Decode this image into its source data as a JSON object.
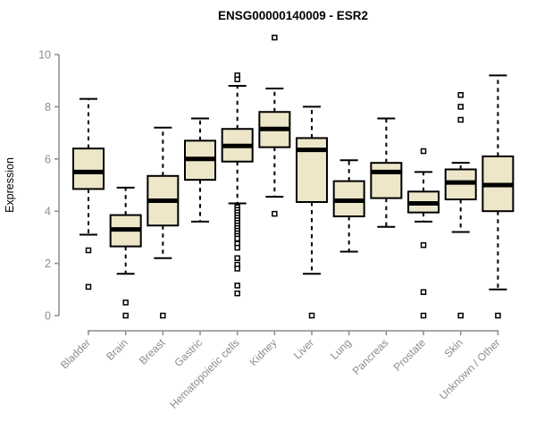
{
  "chart_data": {
    "type": "boxplot",
    "title": "ENSG00000140009 - ESR2",
    "xlabel": "",
    "ylabel": "Expression",
    "ylim": [
      0,
      10
    ],
    "yticks": [
      0,
      2,
      4,
      6,
      8,
      10
    ],
    "grid": false,
    "legend": "none",
    "categories": [
      "Bladder",
      "Brain",
      "Breast",
      "Gastric",
      "Hematopoietic cells",
      "Kidney",
      "Liver",
      "Lung",
      "Pancreas",
      "Prostate",
      "Skin",
      "Unknown / Other"
    ],
    "series": [
      {
        "name": "Bladder",
        "whisker_low": 3.1,
        "q1": 4.85,
        "median": 5.5,
        "q3": 6.4,
        "whisker_high": 8.3,
        "outliers": [
          2.5,
          1.1
        ]
      },
      {
        "name": "Brain",
        "whisker_low": 1.6,
        "q1": 2.65,
        "median": 3.3,
        "q3": 3.85,
        "whisker_high": 4.9,
        "outliers": [
          0.5,
          0
        ]
      },
      {
        "name": "Breast",
        "whisker_low": 2.2,
        "q1": 3.45,
        "median": 4.4,
        "q3": 5.35,
        "whisker_high": 7.2,
        "outliers": [
          0
        ]
      },
      {
        "name": "Gastric",
        "whisker_low": 3.6,
        "q1": 5.2,
        "median": 6.0,
        "q3": 6.7,
        "whisker_high": 7.55,
        "outliers": []
      },
      {
        "name": "Hematopoietic cells",
        "whisker_low": 4.3,
        "q1": 5.9,
        "median": 6.5,
        "q3": 7.15,
        "whisker_high": 8.8,
        "outliers": [
          9.2,
          9.05,
          4.15,
          4.05,
          3.95,
          3.85,
          3.75,
          3.65,
          3.55,
          3.45,
          3.35,
          3.25,
          3.15,
          3.05,
          2.95,
          2.75,
          2.6,
          2.2,
          1.95,
          1.8,
          1.15,
          0.85
        ]
      },
      {
        "name": "Kidney",
        "whisker_low": 4.55,
        "q1": 6.45,
        "median": 7.15,
        "q3": 7.8,
        "whisker_high": 8.7,
        "outliers": [
          10.65,
          3.9
        ]
      },
      {
        "name": "Liver",
        "whisker_low": 1.6,
        "q1": 4.35,
        "median": 6.35,
        "q3": 6.8,
        "whisker_high": 8.0,
        "outliers": [
          0
        ]
      },
      {
        "name": "Lung",
        "whisker_low": 2.45,
        "q1": 3.8,
        "median": 4.4,
        "q3": 5.15,
        "whisker_high": 5.95,
        "outliers": []
      },
      {
        "name": "Pancreas",
        "whisker_low": 3.4,
        "q1": 4.5,
        "median": 5.5,
        "q3": 5.85,
        "whisker_high": 7.55,
        "outliers": []
      },
      {
        "name": "Prostate",
        "whisker_low": 3.6,
        "q1": 3.95,
        "median": 4.3,
        "q3": 4.75,
        "whisker_high": 5.5,
        "outliers": [
          6.3,
          2.7,
          0.9,
          0
        ]
      },
      {
        "name": "Skin",
        "whisker_low": 3.2,
        "q1": 4.45,
        "median": 5.1,
        "q3": 5.6,
        "whisker_high": 5.85,
        "outliers": [
          8.45,
          8.0,
          7.5,
          0
        ]
      },
      {
        "name": "Unknown / Other",
        "whisker_low": 1.0,
        "q1": 4.0,
        "median": 5.0,
        "q3": 6.1,
        "whisker_high": 9.2,
        "outliers": [
          0
        ]
      }
    ]
  },
  "style": {
    "background": "#FFFFFF",
    "box_fill": "#EDE6C8",
    "box_stroke": "#000000",
    "median_color": "#000000",
    "whisker_color": "#000000",
    "outlier_marker": "open-square",
    "outlier_fill": "#FFFFFF",
    "axis_color": "#8C8C8C",
    "label_color": "#8C8C8C",
    "title_color": "#000000"
  }
}
